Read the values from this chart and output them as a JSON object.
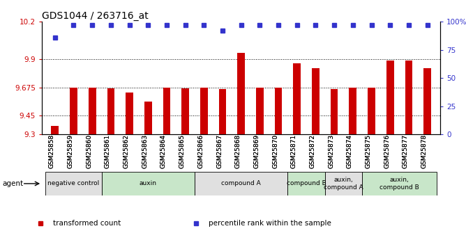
{
  "title": "GDS1044 / 263716_at",
  "samples": [
    "GSM25858",
    "GSM25859",
    "GSM25860",
    "GSM25861",
    "GSM25862",
    "GSM25863",
    "GSM25864",
    "GSM25865",
    "GSM25866",
    "GSM25867",
    "GSM25868",
    "GSM25869",
    "GSM25870",
    "GSM25871",
    "GSM25872",
    "GSM25873",
    "GSM25874",
    "GSM25875",
    "GSM25876",
    "GSM25877",
    "GSM25878"
  ],
  "bar_values": [
    9.37,
    9.675,
    9.675,
    9.665,
    9.635,
    9.56,
    9.675,
    9.665,
    9.675,
    9.66,
    9.95,
    9.675,
    9.675,
    9.87,
    9.83,
    9.66,
    9.675,
    9.675,
    9.89,
    9.89,
    9.83
  ],
  "percentile_values": [
    86,
    97,
    97,
    97,
    97,
    97,
    97,
    97,
    97,
    92,
    97,
    97,
    97,
    97,
    97,
    97,
    97,
    97,
    97,
    97,
    97
  ],
  "ylim_left": [
    9.3,
    10.2
  ],
  "ylim_right": [
    0,
    100
  ],
  "yticks_left": [
    9.3,
    9.45,
    9.675,
    9.9,
    10.2
  ],
  "yticks_right": [
    0,
    25,
    50,
    75,
    100
  ],
  "ytick_labels_left": [
    "9.3",
    "9.45",
    "9.675",
    "9.9",
    "10.2"
  ],
  "ytick_labels_right": [
    "0",
    "25",
    "50",
    "75",
    "100%"
  ],
  "hlines": [
    9.45,
    9.675,
    9.9
  ],
  "bar_color": "#cc0000",
  "dot_color": "#3333cc",
  "agent_groups": [
    {
      "label": "negative control",
      "start": 0,
      "end": 3,
      "color": "#e0e0e0"
    },
    {
      "label": "auxin",
      "start": 3,
      "end": 8,
      "color": "#c8e6c9"
    },
    {
      "label": "compound A",
      "start": 8,
      "end": 13,
      "color": "#e0e0e0"
    },
    {
      "label": "compound B",
      "start": 13,
      "end": 15,
      "color": "#c8e6c9"
    },
    {
      "label": "auxin,\ncompound A",
      "start": 15,
      "end": 17,
      "color": "#e0e0e0"
    },
    {
      "label": "auxin,\ncompound B",
      "start": 17,
      "end": 21,
      "color": "#c8e6c9"
    }
  ]
}
